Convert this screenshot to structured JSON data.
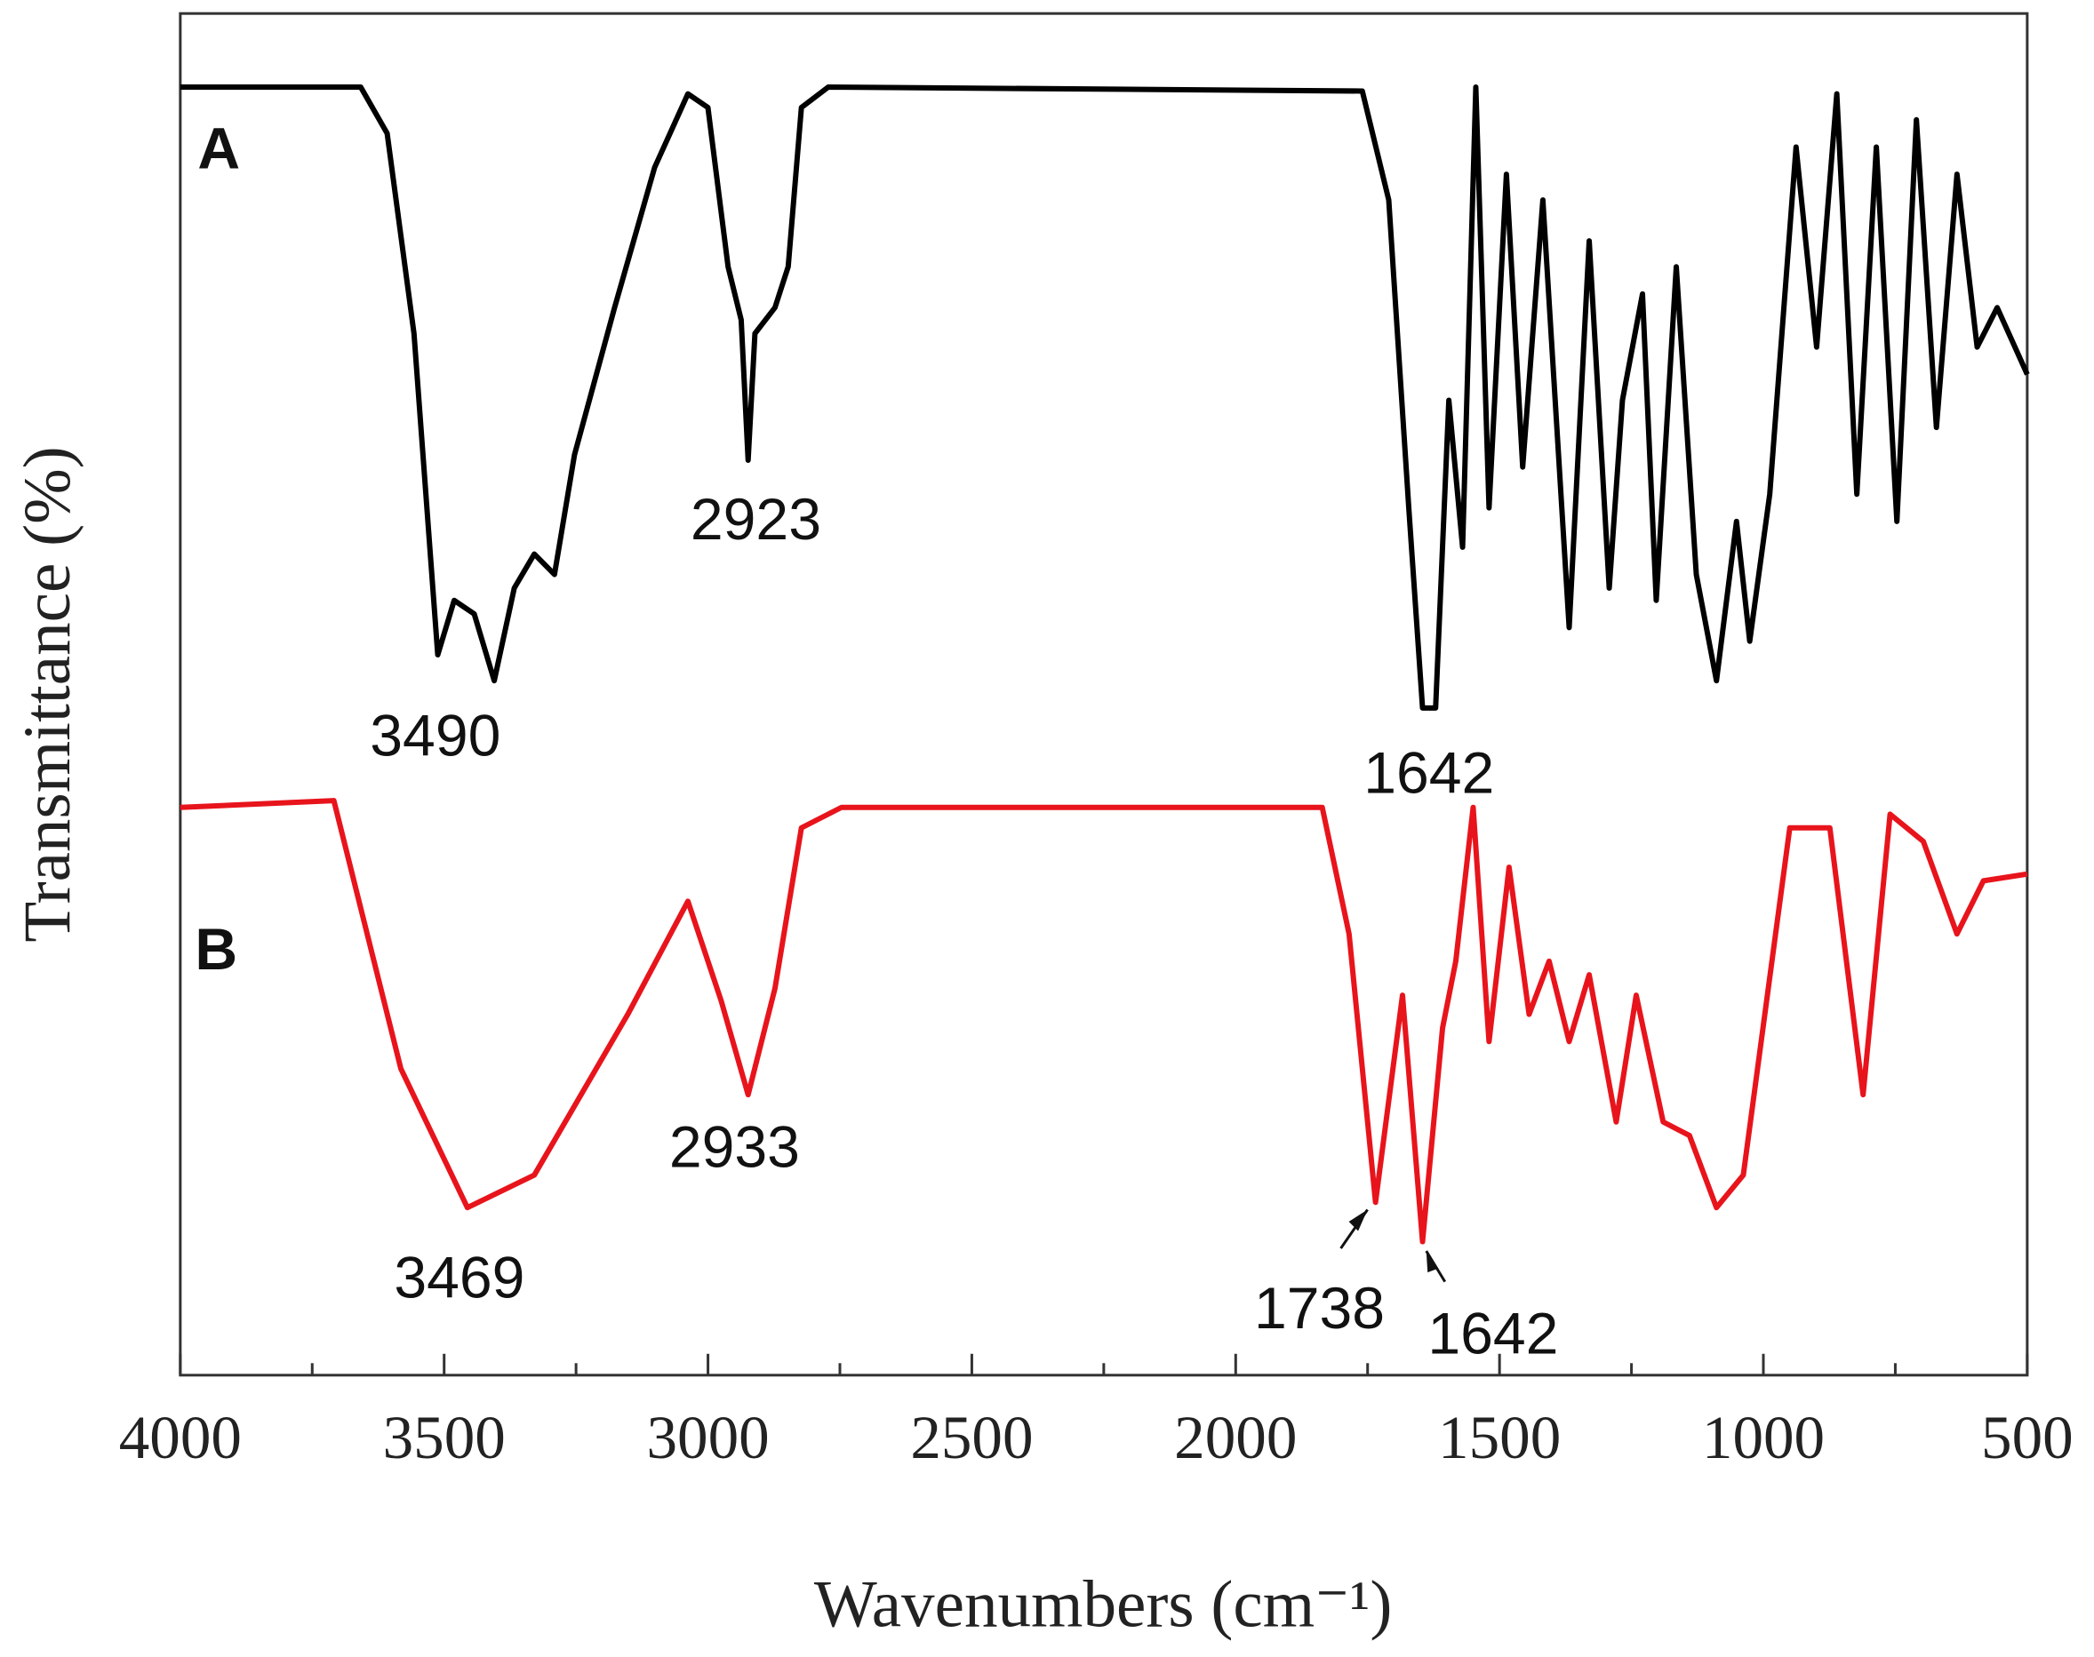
{
  "chart_data": {
    "type": "line",
    "xlabel": "Wavenumbers (cm⁻¹)",
    "ylabel": "Transmittance (%)",
    "xlim": [
      4000,
      500
    ],
    "ylim": [
      0,
      100
    ],
    "xticks": [
      4000,
      3500,
      3000,
      2500,
      2000,
      1500,
      1000,
      500
    ],
    "series": [
      {
        "name": "A",
        "color": "#000000",
        "x": [
          4000,
          3658,
          3608,
          3557,
          3512,
          3481,
          3443,
          3405,
          3367,
          3329,
          3291,
          3253,
          3177,
          3101,
          3038,
          3000,
          2962,
          2937,
          2924,
          2911,
          2873,
          2848,
          2823,
          2772,
          1760,
          1710,
          1672,
          1646,
          1621,
          1596,
          1570,
          1545,
          1520,
          1487,
          1456,
          1418,
          1368,
          1330,
          1292,
          1267,
          1229,
          1203,
          1165,
          1127,
          1089,
          1051,
          1026,
          988,
          938,
          899,
          861,
          823,
          786,
          747,
          710,
          672,
          633,
          595,
          557,
          500
        ],
        "values": [
          94.6,
          94.6,
          91.2,
          76.5,
          52.9,
          56.9,
          55.9,
          51.0,
          57.8,
          60.3,
          58.8,
          67.6,
          78.4,
          88.7,
          94.1,
          93.1,
          81.4,
          77.5,
          67.2,
          76.5,
          78.4,
          81.4,
          93.1,
          94.6,
          94.3,
          86.3,
          63.7,
          49.0,
          49.0,
          71.6,
          60.8,
          94.6,
          63.7,
          88.2,
          66.7,
          86.3,
          54.9,
          83.3,
          57.8,
          71.6,
          79.4,
          56.9,
          81.4,
          58.8,
          51.0,
          62.7,
          53.9,
          64.7,
          90.2,
          75.5,
          94.1,
          64.7,
          90.2,
          62.7,
          92.2,
          69.6,
          88.2,
          75.5,
          78.4,
          73.5
        ]
      },
      {
        "name": "B",
        "color": "#e8141c",
        "x": [
          4000,
          3709,
          3658,
          3582,
          3456,
          3329,
          3152,
          3038,
          2975,
          2924,
          2873,
          2823,
          2747,
          1836,
          1785,
          1735,
          1684,
          1646,
          1608,
          1583,
          1550,
          1520,
          1482,
          1444,
          1406,
          1368,
          1330,
          1279,
          1241,
          1190,
          1140,
          1089,
          1038,
          950,
          874,
          811,
          760,
          697,
          633,
          583,
          500
        ],
        "values": [
          41.7,
          42.2,
          34.3,
          22.5,
          12.3,
          14.7,
          26.5,
          34.8,
          27.5,
          20.6,
          28.4,
          40.2,
          41.7,
          41.7,
          32.4,
          12.7,
          27.9,
          9.8,
          25.5,
          30.4,
          41.7,
          24.5,
          37.3,
          26.5,
          30.4,
          24.5,
          29.4,
          18.6,
          27.9,
          18.6,
          17.6,
          12.3,
          14.7,
          40.2,
          40.2,
          20.6,
          41.2,
          39.2,
          32.4,
          36.3,
          36.8
        ]
      }
    ],
    "annotations": [
      "3490",
      "2923",
      "1642",
      "3469",
      "2933",
      "1738",
      "1642"
    ]
  }
}
